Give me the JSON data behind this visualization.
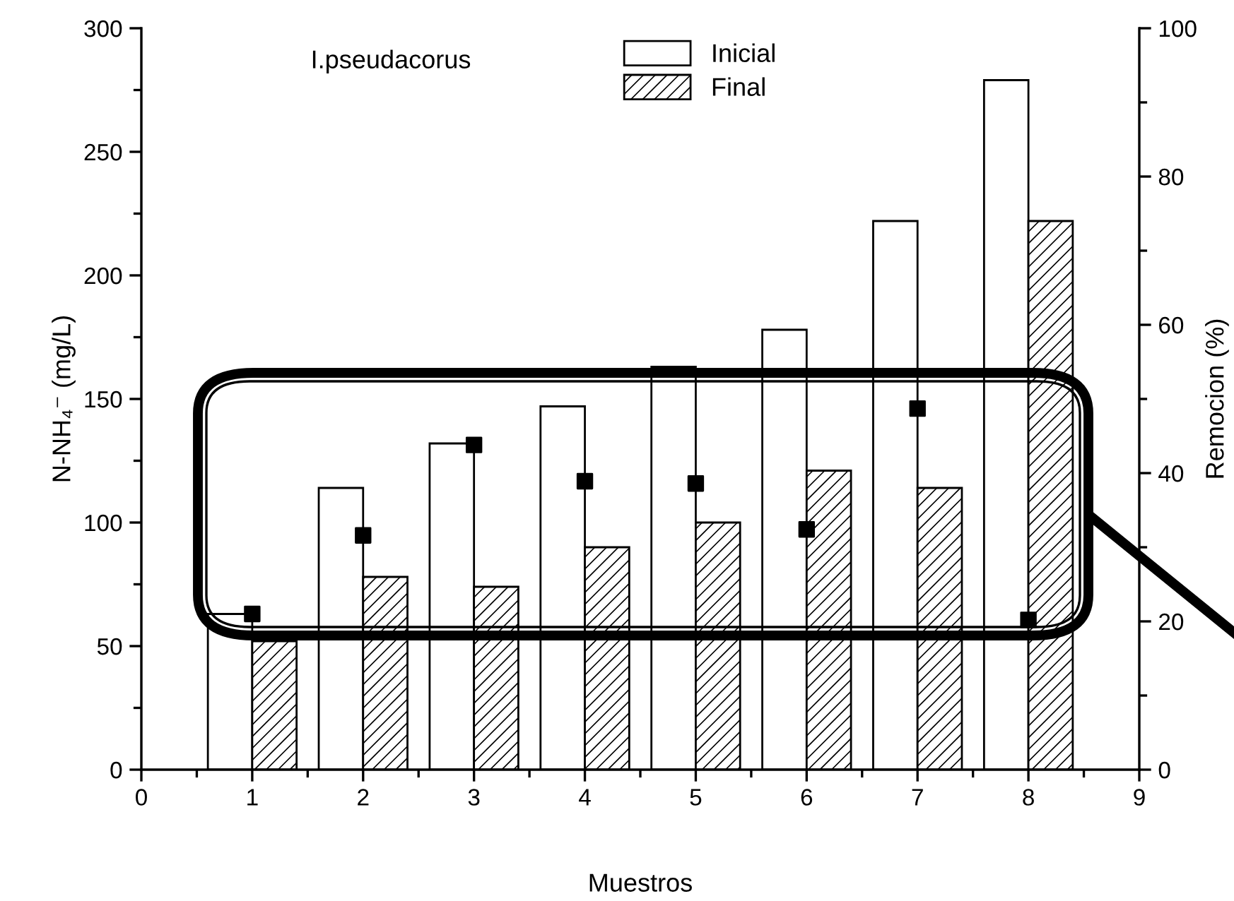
{
  "chart_data": {
    "type": "bar",
    "annotations": [
      "I.pseudacorus"
    ],
    "xlabel": "Muestros",
    "ylabel": "N-NH₄⁻ (mg/L)",
    "y2label": "Remocion (%)",
    "x": [
      1,
      2,
      3,
      4,
      5,
      6,
      7,
      8
    ],
    "series": [
      {
        "name": "Inicial",
        "color": "#ffffff",
        "values": [
          63,
          114,
          132,
          147,
          163,
          178,
          222,
          279
        ]
      },
      {
        "name": "Final",
        "color": "#000000",
        "values": [
          52,
          78,
          74,
          90,
          100,
          121,
          114,
          222
        ]
      },
      {
        "type": "scatter",
        "axis": "y2",
        "color": "#000000",
        "marker": "square",
        "values": [
          21,
          31.6,
          43.8,
          38.9,
          38.6,
          32.4,
          48.7,
          20.2
        ]
      }
    ],
    "xlim": [
      0,
      9
    ],
    "xticks": [
      0,
      1,
      2,
      3,
      4,
      5,
      6,
      7,
      8,
      9
    ],
    "ylim": [
      0,
      300
    ],
    "yticks": [
      0,
      50,
      100,
      150,
      200,
      250,
      300
    ],
    "y2lim": [
      0,
      100
    ],
    "y2ticks": [
      0,
      20,
      40,
      60,
      80,
      100
    ],
    "grid": false,
    "legend": "top"
  }
}
